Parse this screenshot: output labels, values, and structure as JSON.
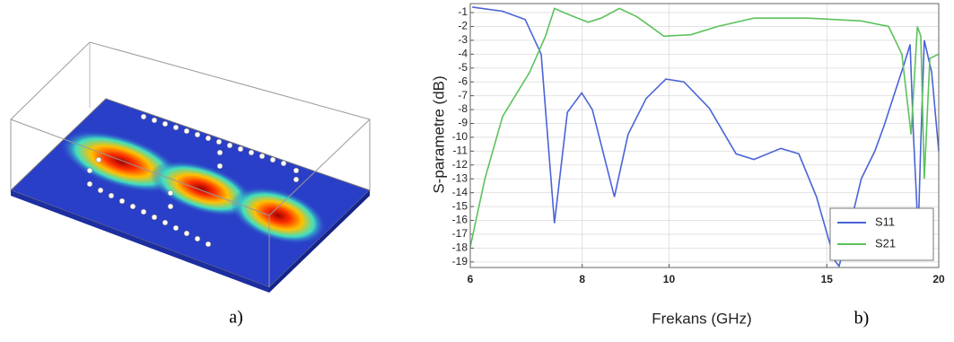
{
  "figure": {
    "panel_a_label": "a)",
    "panel_b_label": "b)"
  },
  "chart_data": {
    "type": "line",
    "x_label": "Frekans (GHz)",
    "y_label": "S-parametre (dB)",
    "xscale": "log",
    "xlim": [
      6,
      20
    ],
    "xticks": [
      6,
      8,
      10,
      15,
      20
    ],
    "ylim": [
      -19.4,
      -0.35
    ],
    "yticks": [
      -1,
      -2,
      -3,
      -4,
      -5,
      -6,
      -7,
      -8,
      -9,
      -10,
      -11,
      -12,
      -13,
      -14,
      -15,
      -16,
      -17,
      -18,
      -19
    ],
    "grid": true,
    "legend": "lower right",
    "series": [
      {
        "name": "S11",
        "color": "#4a63d8",
        "x": [
          6.03,
          6.52,
          6.91,
          7.2,
          7.45,
          7.7,
          7.99,
          8.21,
          8.69,
          9.0,
          9.43,
          9.92,
          10.39,
          11.09,
          11.88,
          12.44,
          13.33,
          13.96,
          14.61,
          15.31,
          15.48,
          15.85,
          16.39,
          16.97,
          17.37,
          17.9,
          18.28,
          18.58,
          18.74,
          18.97,
          19.1,
          19.27,
          19.64,
          20
        ],
        "values": [
          -0.6,
          -0.9,
          -1.5,
          -4,
          -16.2,
          -8.2,
          -6.8,
          -8,
          -14.3,
          -9.8,
          -7.2,
          -5.8,
          -6,
          -7.9,
          -11.2,
          -11.6,
          -10.8,
          -11.2,
          -14.3,
          -18.9,
          -19.3,
          -16.9,
          -13,
          -11,
          -9.2,
          -6.6,
          -4.8,
          -3.3,
          -9.8,
          -16.9,
          -10.4,
          -3,
          -5.3,
          -11
        ]
      },
      {
        "name": "S21",
        "color": "#5cc25c",
        "x": [
          6,
          6.23,
          6.52,
          6.99,
          7.28,
          7.45,
          7.7,
          8.12,
          8.4,
          8.8,
          9.21,
          9.87,
          10.58,
          11.33,
          12.44,
          14.28,
          16.39,
          17.58,
          18.19,
          18.63,
          18.93,
          19.1,
          19.27,
          19.55,
          20
        ],
        "values": [
          -17.9,
          -13,
          -8.5,
          -5.3,
          -2.7,
          -0.7,
          -1.1,
          -1.7,
          -1.4,
          -0.7,
          -1.3,
          -2.7,
          -2.6,
          -2,
          -1.4,
          -1.4,
          -1.6,
          -2,
          -4,
          -9.8,
          -2,
          -2.7,
          -13,
          -4.3,
          -4
        ]
      }
    ]
  }
}
